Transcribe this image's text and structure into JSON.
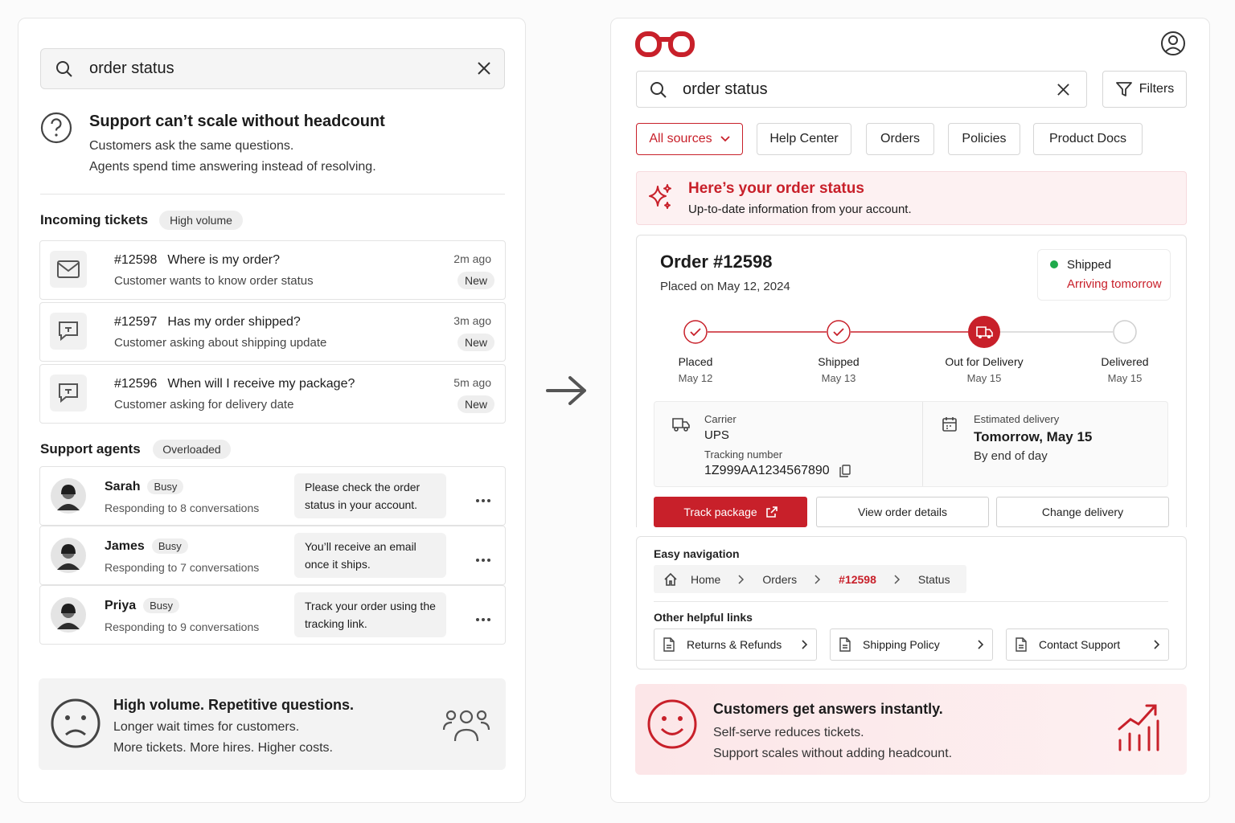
{
  "left": {
    "search": "order status",
    "problem": {
      "title": "Support can’t scale without headcount",
      "lines": [
        "Customers ask the same questions.",
        "Agents spend time answering instead of resolving."
      ]
    },
    "tickets": {
      "heading": "Incoming tickets",
      "badge": "High volume",
      "items": [
        {
          "id": "#12598",
          "subject": "Where is my order?",
          "description": "Customer wants to know order status",
          "time": "2m ago",
          "status": "New"
        },
        {
          "id": "#12597",
          "subject": "Has my order shipped?",
          "description": "Customer asking about shipping update",
          "time": "3m ago",
          "status": "New"
        },
        {
          "id": "#12596",
          "subject": "When will I receive my package?",
          "description": "Customer asking for delivery date",
          "time": "5m ago",
          "status": "New"
        }
      ]
    },
    "agents": {
      "heading": "Support agents",
      "badge": "Overloaded",
      "items": [
        {
          "name": "Sarah",
          "status": "Busy",
          "activity": "Responding to 8 conversations",
          "message": "Please check the order status in your account."
        },
        {
          "name": "James",
          "status": "Busy",
          "activity": "Responding to 7 conversations",
          "message": "You’ll receive an email once it ships."
        },
        {
          "name": "Priya",
          "status": "Busy",
          "activity": "Responding to 9 conversations",
          "message": "Track your order using the tracking link."
        }
      ]
    },
    "summary": {
      "title": "High volume. Repetitive questions.",
      "lines": [
        "Longer wait times for customers.",
        "More tickets. More hires. Higher costs."
      ]
    }
  },
  "right": {
    "search": "order status",
    "filters": "Filters",
    "sources": [
      "All sources",
      "Help Center",
      "Orders",
      "Policies",
      "Product Docs"
    ],
    "answer": {
      "title": "Here’s your order status",
      "subtitle": "Up-to-date information from your account."
    },
    "order": {
      "title": "Order #12598",
      "placed": "Placed on May 12, 2024",
      "status": "Shipped",
      "eta": "Arriving tomorrow",
      "steps": [
        {
          "label": "Placed",
          "date": "May 12"
        },
        {
          "label": "Shipped",
          "date": "May 13"
        },
        {
          "label": "Out for Delivery",
          "date": "May 15"
        },
        {
          "label": "Delivered",
          "date": "May 15"
        }
      ],
      "carrier_label": "Carrier",
      "carrier": "UPS",
      "tracking_label": "Tracking number",
      "tracking": "1Z999AA1234567890",
      "estimate_label": "Estimated delivery",
      "estimate": "Tomorrow, May 15",
      "estimate_note": "By end of day",
      "actions": [
        "Track package",
        "View order details",
        "Change delivery"
      ]
    },
    "navigation": {
      "heading": "Easy navigation",
      "breadcrumb": [
        "Home",
        "Orders",
        "#12598",
        "Status"
      ],
      "links_heading": "Other helpful links",
      "links": [
        "Returns & Refunds",
        "Shipping Policy",
        "Contact Support"
      ]
    },
    "summary": {
      "title": "Customers get answers instantly.",
      "lines": [
        "Self-serve reduces tickets.",
        "Support scales without adding headcount."
      ]
    }
  }
}
